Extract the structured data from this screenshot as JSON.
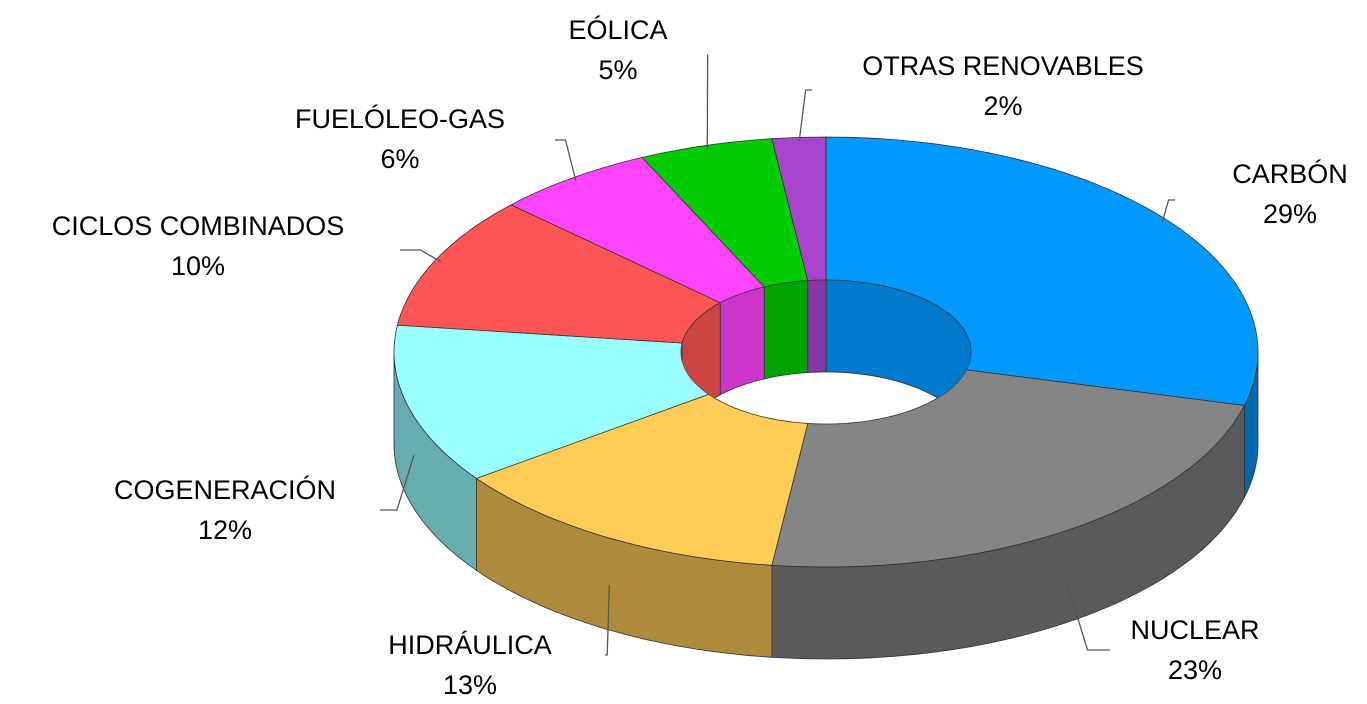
{
  "chart_data": {
    "type": "donut3d",
    "categories": [
      "CARBÓN",
      "NUCLEAR",
      "HIDRÁULICA",
      "COGENERACIÓN",
      "CICLOS COMBINADOS",
      "FUELÓLEO-GAS",
      "EÓLICA",
      "OTRAS RENOVABLES"
    ],
    "values": [
      29,
      23,
      13,
      12,
      10,
      6,
      5,
      2
    ],
    "value_labels": [
      "29%",
      "23%",
      "13%",
      "12%",
      "10%",
      "6%",
      "5%",
      "2%"
    ],
    "colors": [
      "#0099ff",
      "#858585",
      "#ffcc55",
      "#99ffff",
      "#ff5555",
      "#ff44ff",
      "#00cc00",
      "#aa44cc"
    ]
  }
}
